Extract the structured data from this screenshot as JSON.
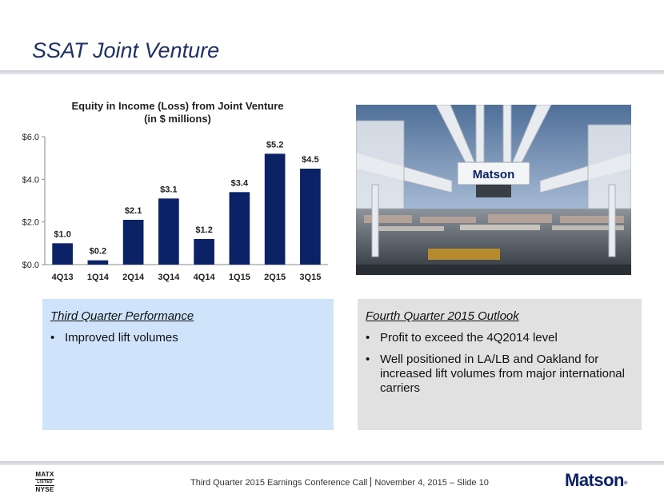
{
  "slide": {
    "title": "SSAT Joint Venture"
  },
  "chart_data": {
    "type": "bar",
    "title": "Equity in Income (Loss) from Joint Venture",
    "subtitle": "(in $ millions)",
    "categories": [
      "4Q13",
      "1Q14",
      "2Q14",
      "3Q14",
      "4Q14",
      "1Q15",
      "2Q15",
      "3Q15"
    ],
    "values": [
      1.0,
      0.2,
      2.1,
      3.1,
      1.2,
      3.4,
      5.2,
      4.5
    ],
    "data_labels": [
      "$1.0",
      "$0.2",
      "$2.1",
      "$3.1",
      "$1.2",
      "$3.4",
      "$5.2",
      "$4.5"
    ],
    "ylim": [
      0,
      6
    ],
    "yticks": [
      0,
      2,
      4,
      6
    ],
    "ytick_labels": [
      "$0.0",
      "$2.0",
      "$4.0",
      "$6.0"
    ],
    "grid": false,
    "legend": "none",
    "bar_color": "#0b2266"
  },
  "photo": {
    "crane_sign": "Matson"
  },
  "performance": {
    "heading": "Third Quarter Performance",
    "bullets": [
      "Improved lift volumes"
    ]
  },
  "outlook": {
    "heading": "Fourth Quarter 2015 Outlook",
    "bullets": [
      "Profit to exceed the 4Q2014 level",
      "Well positioned in LA/LB and Oakland for increased lift volumes from major international carriers"
    ]
  },
  "footer": {
    "ticker_top": "MATX",
    "ticker_mid": "LISTED",
    "ticker_bottom": "NYSE",
    "event": "Third Quarter 2015 Earnings Conference Call",
    "date_slide": "November 4, 2015 – Slide 10",
    "brand": "Matson",
    "brand_mark": "®"
  },
  "colors": {
    "title": "#1f3163",
    "left_box": "#cfe4fb",
    "right_box": "#e1e1e1",
    "brand": "#0b2266"
  }
}
